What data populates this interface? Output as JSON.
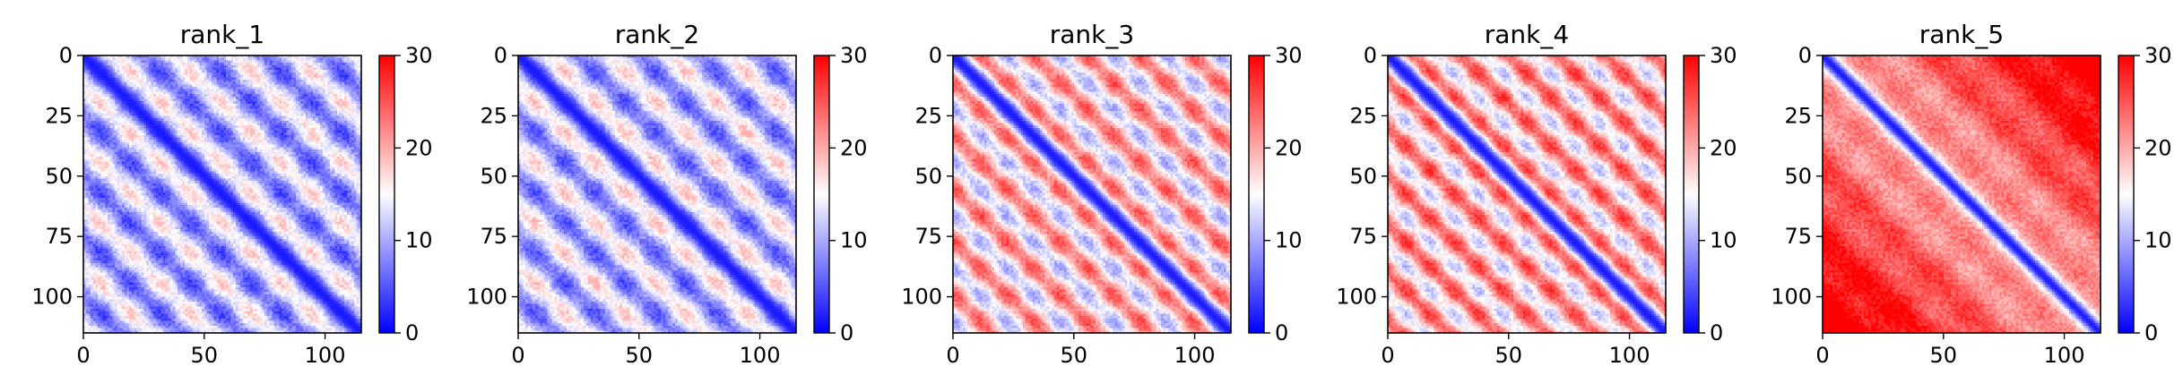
{
  "chart_data": [
    {
      "type": "heatmap",
      "title": "rank_1",
      "n": 115,
      "xlim": [
        0,
        115
      ],
      "ylim": [
        115,
        0
      ],
      "x_ticks": [
        0,
        50,
        100
      ],
      "y_ticks": [
        0,
        25,
        50,
        75,
        100
      ],
      "colorbar": {
        "range": [
          0,
          30
        ],
        "ticks": [
          0,
          10,
          20,
          30
        ],
        "colormap": "bwr",
        "center": 15
      },
      "pattern": {
        "diag_value": 1.5,
        "diag_width": 3.0,
        "base": 11.0,
        "period": 25,
        "phase": 6,
        "amplitude": 7.0,
        "saturation": 0.0
      }
    },
    {
      "type": "heatmap",
      "title": "rank_2",
      "n": 115,
      "xlim": [
        0,
        115
      ],
      "ylim": [
        115,
        0
      ],
      "x_ticks": [
        0,
        50,
        100
      ],
      "y_ticks": [
        0,
        25,
        50,
        75,
        100
      ],
      "colorbar": {
        "range": [
          0,
          30
        ],
        "ticks": [
          0,
          10,
          20,
          30
        ],
        "colormap": "bwr",
        "center": 15
      },
      "pattern": {
        "diag_value": 1.5,
        "diag_width": 3.0,
        "base": 11.5,
        "period": 25,
        "phase": 6,
        "amplitude": 7.0,
        "saturation": 0.0
      }
    },
    {
      "type": "heatmap",
      "title": "rank_3",
      "n": 115,
      "xlim": [
        0,
        115
      ],
      "ylim": [
        115,
        0
      ],
      "x_ticks": [
        0,
        50,
        100
      ],
      "y_ticks": [
        0,
        25,
        50,
        75,
        100
      ],
      "colorbar": {
        "range": [
          0,
          30
        ],
        "ticks": [
          0,
          10,
          20,
          30
        ],
        "colormap": "bwr",
        "center": 15
      },
      "pattern": {
        "diag_value": 1.5,
        "diag_width": 3.5,
        "base": 17.5,
        "period": 22,
        "phase": 0,
        "amplitude": 8.0,
        "saturation": 0.0
      }
    },
    {
      "type": "heatmap",
      "title": "rank_4",
      "n": 115,
      "xlim": [
        0,
        115
      ],
      "ylim": [
        115,
        0
      ],
      "x_ticks": [
        0,
        50,
        100
      ],
      "y_ticks": [
        0,
        25,
        50,
        75,
        100
      ],
      "colorbar": {
        "range": [
          0,
          30
        ],
        "ticks": [
          0,
          10,
          20,
          30
        ],
        "colormap": "bwr",
        "center": 15
      },
      "pattern": {
        "diag_value": 1.5,
        "diag_width": 3.5,
        "base": 19.0,
        "period": 20,
        "phase": 3,
        "amplitude": 8.0,
        "saturation": 0.0
      }
    },
    {
      "type": "heatmap",
      "title": "rank_5",
      "n": 115,
      "xlim": [
        0,
        115
      ],
      "ylim": [
        115,
        0
      ],
      "x_ticks": [
        0,
        50,
        100
      ],
      "y_ticks": [
        0,
        25,
        50,
        75,
        100
      ],
      "colorbar": {
        "range": [
          0,
          30
        ],
        "ticks": [
          0,
          10,
          20,
          30
        ],
        "colormap": "bwr",
        "center": 15
      },
      "pattern": {
        "diag_value": 1.5,
        "diag_width": 3.0,
        "base": 19.0,
        "period": 30,
        "phase": 0,
        "amplitude": 2.5,
        "saturation": 0.12
      }
    }
  ]
}
